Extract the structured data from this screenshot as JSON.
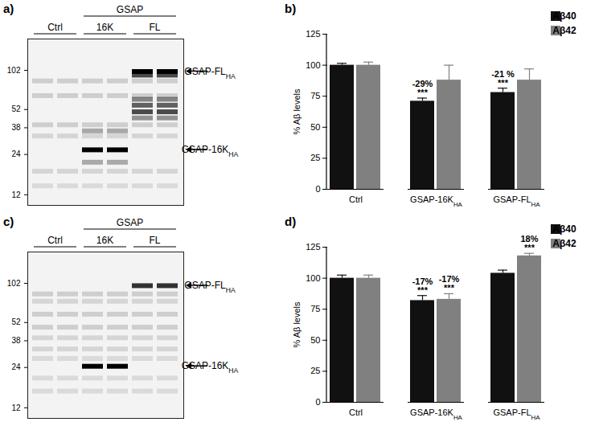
{
  "chart_data": [
    {
      "type": "blot",
      "panel": "a)",
      "lanes": 6,
      "log": "y",
      "tick_labels": "y",
      "ylim": [
        10,
        175
      ],
      "yticks": [
        12,
        24,
        38,
        52,
        102
      ],
      "subscript": "HA",
      "lane_groups": [
        {
          "text": "GSAP",
          "lanes": [
            2,
            5
          ],
          "level": 0
        },
        {
          "text": "Ctrl",
          "lanes": [
            0,
            1
          ],
          "level": 1
        },
        {
          "text": "16K",
          "lanes": [
            2,
            3
          ],
          "level": 1
        },
        {
          "text": "FL",
          "lanes": [
            4,
            5
          ],
          "level": 1
        }
      ],
      "markers": [
        {
          "text": "GSAP-FLHA",
          "kda": 100
        },
        {
          "text": "GSAP-16KHA",
          "kda": 26
        }
      ],
      "bands": [
        {
          "lanes": [
            0,
            1,
            2,
            3,
            4,
            5
          ],
          "kda": 85,
          "intensity": 0.15
        },
        {
          "lanes": [
            0,
            1,
            2,
            3,
            4,
            5
          ],
          "kda": 66,
          "intensity": 0.15
        },
        {
          "lanes": [
            0,
            1,
            2,
            3,
            4,
            5
          ],
          "kda": 40,
          "intensity": 0.15
        },
        {
          "lanes": [
            0,
            1,
            2,
            3,
            4,
            5
          ],
          "kda": 33,
          "intensity": 0.12
        },
        {
          "lanes": [
            0,
            1,
            2,
            3,
            4,
            5
          ],
          "kda": 18,
          "intensity": 0.12
        },
        {
          "lanes": [
            0,
            1,
            2,
            3,
            4,
            5
          ],
          "kda": 14,
          "intensity": 0.1
        },
        {
          "lanes": [
            2,
            3
          ],
          "kda": 26,
          "intensity": 1
        },
        {
          "lanes": [
            2,
            3
          ],
          "kda": 21,
          "intensity": 0.3
        },
        {
          "lanes": [
            2,
            3
          ],
          "kda": 36,
          "intensity": 0.3
        },
        {
          "lanes": [
            4,
            5
          ],
          "kda": 100,
          "intensity": 1
        },
        {
          "lanes": [
            4,
            5
          ],
          "kda": 94,
          "intensity": 0.7
        },
        {
          "lanes": [
            4,
            5
          ],
          "kda": 62,
          "intensity": 0.45
        },
        {
          "lanes": [
            4,
            5
          ],
          "kda": 56,
          "intensity": 0.6
        },
        {
          "lanes": [
            4,
            5
          ],
          "kda": 50,
          "intensity": 0.7
        },
        {
          "lanes": [
            4,
            5
          ],
          "kda": 45,
          "intensity": 0.4
        }
      ]
    },
    {
      "type": "bar",
      "panel": "b)",
      "legend": "top-right",
      "subscript": "HA",
      "categories": [
        "Ctrl",
        "GSAP-16KHA",
        "GSAP-FLHA"
      ],
      "ylabel": "% Aβ levels",
      "ylim": [
        0,
        125
      ],
      "yticks": [
        0,
        25,
        50,
        75,
        100,
        125
      ],
      "series": [
        {
          "name": "Aβ40",
          "color": "#111111",
          "values": [
            100,
            71,
            78
          ],
          "errors": [
            1.5,
            2.5,
            3.5
          ],
          "annotations": [
            null,
            "-29%\n***",
            "-21 %\n***"
          ]
        },
        {
          "name": "Aβ42",
          "color": "#808080",
          "values": [
            100,
            88,
            88
          ],
          "errors": [
            2.5,
            12,
            9
          ],
          "annotations": [
            null,
            null,
            null
          ]
        }
      ]
    },
    {
      "type": "blot",
      "panel": "c)",
      "lanes": 6,
      "log": "y",
      "tick_labels": "y",
      "ylim": [
        10,
        175
      ],
      "yticks": [
        12,
        24,
        38,
        52,
        102
      ],
      "subscript": "HA",
      "lane_groups": [
        {
          "text": "GSAP",
          "lanes": [
            2,
            5
          ],
          "level": 0
        },
        {
          "text": "Ctrl",
          "lanes": [
            0,
            1
          ],
          "level": 1
        },
        {
          "text": "16K",
          "lanes": [
            2,
            3
          ],
          "level": 1
        },
        {
          "text": "FL",
          "lanes": [
            4,
            5
          ],
          "level": 1
        }
      ],
      "markers": [
        {
          "text": "GSAP-FLHA",
          "kda": 98
        },
        {
          "text": "GSAP-16KHA",
          "kda": 24.5
        }
      ],
      "bands": [
        {
          "lanes": [
            0,
            1,
            2,
            3,
            4,
            5
          ],
          "kda": 85,
          "intensity": 0.15
        },
        {
          "lanes": [
            0,
            1,
            2,
            3,
            4,
            5
          ],
          "kda": 75,
          "intensity": 0.12
        },
        {
          "lanes": [
            0,
            1,
            2,
            3,
            4,
            5
          ],
          "kda": 60,
          "intensity": 0.15
        },
        {
          "lanes": [
            0,
            1,
            2,
            3,
            4,
            5
          ],
          "kda": 48,
          "intensity": 0.15
        },
        {
          "lanes": [
            0,
            1,
            2,
            3,
            4,
            5
          ],
          "kda": 40,
          "intensity": 0.12
        },
        {
          "lanes": [
            0,
            1,
            2,
            3,
            4,
            5
          ],
          "kda": 33,
          "intensity": 0.12
        },
        {
          "lanes": [
            0,
            1,
            2,
            3,
            4,
            5
          ],
          "kda": 28,
          "intensity": 0.1
        },
        {
          "lanes": [
            0,
            1,
            2,
            3,
            4,
            5
          ],
          "kda": 20,
          "intensity": 0.1
        },
        {
          "lanes": [
            0,
            1,
            2,
            3,
            4,
            5
          ],
          "kda": 16,
          "intensity": 0.1
        },
        {
          "lanes": [
            2,
            3
          ],
          "kda": 24.5,
          "intensity": 1
        },
        {
          "lanes": [
            4,
            5
          ],
          "kda": 98,
          "intensity": 0.8
        }
      ]
    },
    {
      "type": "bar",
      "panel": "d)",
      "legend": "top-right",
      "subscript": "HA",
      "categories": [
        "Ctrl",
        "GSAP-16KHA",
        "GSAP-FLHA"
      ],
      "ylabel": "% Aβ levels",
      "ylim": [
        0,
        125
      ],
      "yticks": [
        0,
        25,
        50,
        75,
        100,
        125
      ],
      "series": [
        {
          "name": "Aβ40",
          "color": "#111111",
          "values": [
            100,
            82,
            104
          ],
          "errors": [
            2.5,
            4,
            2.5
          ],
          "annotations": [
            null,
            "-17%\n***",
            null
          ]
        },
        {
          "name": "Aβ42",
          "color": "#808080",
          "values": [
            100,
            83,
            118
          ],
          "errors": [
            2.5,
            4.5,
            2
          ],
          "annotations": [
            null,
            "-17%\n***",
            "18%\n***"
          ]
        }
      ]
    }
  ]
}
